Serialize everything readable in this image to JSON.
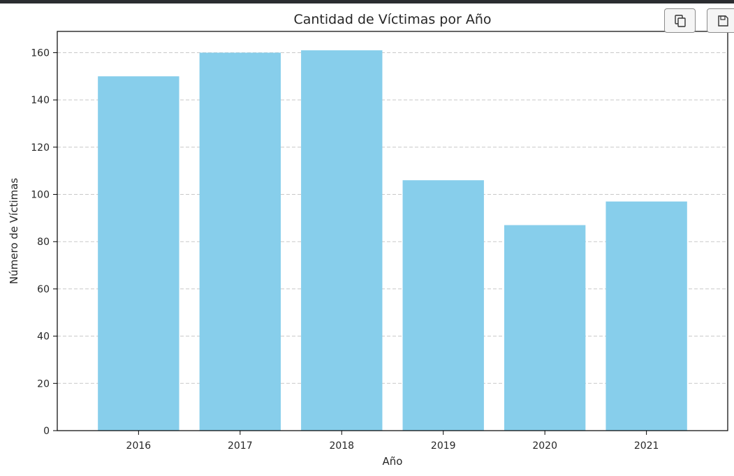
{
  "toolbar": {
    "copy_icon": "copy-icon",
    "save_icon": "save-icon"
  },
  "colors": {
    "bar": "#87ceeb",
    "grid": "#c8c8c8",
    "axis": "#000000"
  },
  "chart_data": {
    "type": "bar",
    "title": "Cantidad de Víctimas por Año",
    "xlabel": "Año",
    "ylabel": "Número de Víctimas",
    "categories": [
      "2016",
      "2017",
      "2018",
      "2019",
      "2020",
      "2021"
    ],
    "values": [
      150,
      160,
      161,
      106,
      87,
      97
    ],
    "ylim": [
      0,
      169
    ],
    "yticks": [
      0,
      20,
      40,
      60,
      80,
      100,
      120,
      140,
      160
    ],
    "grid": "y-dashed",
    "legend": "none"
  }
}
